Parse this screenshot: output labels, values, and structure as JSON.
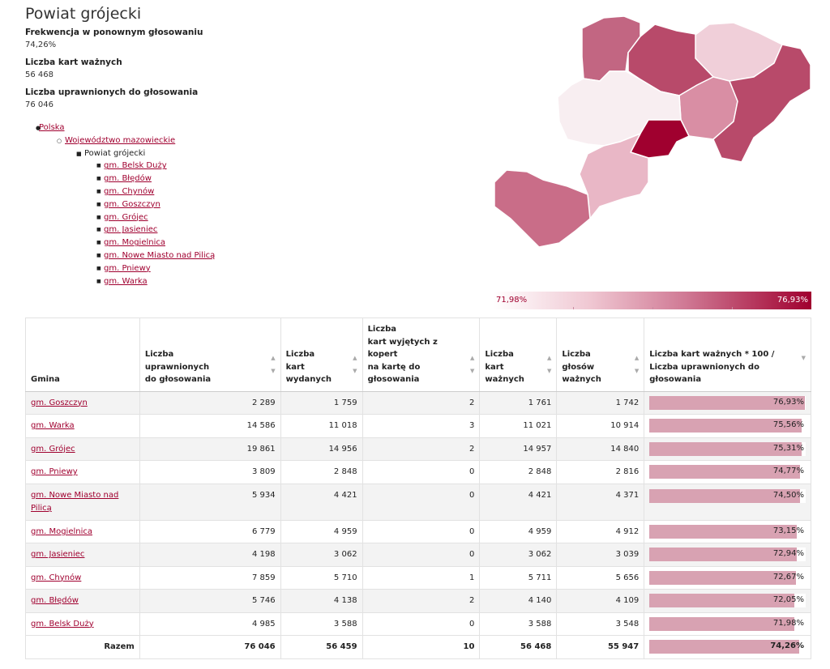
{
  "title": "Powiat grójecki",
  "stats": [
    {
      "label": "Frekwencja w ponownym głosowaniu",
      "value": "74,26%"
    },
    {
      "label": "Liczba kart ważnych",
      "value": "56 468"
    },
    {
      "label": "Liczba uprawnionych do głosowania",
      "value": "76 046"
    }
  ],
  "breadcrumb": {
    "country": "Polska",
    "voivodeship": "Województwo mazowieckie",
    "current": "Powiat grójecki",
    "gminy": [
      "gm. Belsk Duży",
      "gm. Błędów",
      "gm. Chynów",
      "gm. Goszczyn",
      "gm. Grójec",
      "gm. Jasieniec",
      "gm. Mogielnica",
      "gm. Nowe Miasto nad Pilicą",
      "gm. Pniewy",
      "gm. Warka"
    ]
  },
  "legend": {
    "min": "71,98%",
    "max": "76,93%",
    "color_low": "#ffffff",
    "color_high": "#a0002f"
  },
  "map_colors": {
    "warka": "#b84a6a",
    "goszczyn": "#a0002f",
    "grojec": "#c26682",
    "pniewy": "#d98ea4",
    "belsk": "#f8eef1",
    "chynow": "#f0cfd9",
    "jasieniec": "#d88ea4",
    "bledow": "#e9b7c6",
    "nowe_miasto": "#c96d88",
    "mogielnica": "#fce9ee"
  },
  "table": {
    "headers": {
      "gmina": "Gmina",
      "uprawnionych": [
        "Liczba",
        "uprawnionych",
        "do głosowania"
      ],
      "wydanych": [
        "Liczba",
        "kart",
        "wydanych"
      ],
      "wyjetych": [
        "Liczba",
        "kart wyjętych z",
        "kopert",
        "na kartę do",
        "głosowania"
      ],
      "waznych": [
        "Liczba",
        "kart",
        "ważnych"
      ],
      "glosow": [
        "Liczba",
        "głosów",
        "ważnych"
      ],
      "frekwencja": [
        "Liczba kart ważnych * 100 /",
        "Liczba uprawnionych do",
        "głosowania"
      ]
    },
    "rows": [
      {
        "gmina": "gm. Goszczyn",
        "uprawnionych": "2 289",
        "wydanych": "1 759",
        "wyjetych": "2",
        "waznych": "1 761",
        "glosow": "1 742",
        "pct": "76,93%",
        "pct_value": 76.93
      },
      {
        "gmina": "gm. Warka",
        "uprawnionych": "14 586",
        "wydanych": "11 018",
        "wyjetych": "3",
        "waznych": "11 021",
        "glosow": "10 914",
        "pct": "75,56%",
        "pct_value": 75.56
      },
      {
        "gmina": "gm. Grójec",
        "uprawnionych": "19 861",
        "wydanych": "14 956",
        "wyjetych": "2",
        "waznych": "14 957",
        "glosow": "14 840",
        "pct": "75,31%",
        "pct_value": 75.31
      },
      {
        "gmina": "gm. Pniewy",
        "uprawnionych": "3 809",
        "wydanych": "2 848",
        "wyjetych": "0",
        "waznych": "2 848",
        "glosow": "2 816",
        "pct": "74,77%",
        "pct_value": 74.77
      },
      {
        "gmina": "gm. Nowe Miasto nad Pilicą",
        "uprawnionych": "5 934",
        "wydanych": "4 421",
        "wyjetych": "0",
        "waznych": "4 421",
        "glosow": "4 371",
        "pct": "74,50%",
        "pct_value": 74.5
      },
      {
        "gmina": "gm. Mogielnica",
        "uprawnionych": "6 779",
        "wydanych": "4 959",
        "wyjetych": "0",
        "waznych": "4 959",
        "glosow": "4 912",
        "pct": "73,15%",
        "pct_value": 73.15
      },
      {
        "gmina": "gm. Jasieniec",
        "uprawnionych": "4 198",
        "wydanych": "3 062",
        "wyjetych": "0",
        "waznych": "3 062",
        "glosow": "3 039",
        "pct": "72,94%",
        "pct_value": 72.94
      },
      {
        "gmina": "gm. Chynów",
        "uprawnionych": "7 859",
        "wydanych": "5 710",
        "wyjetych": "1",
        "waznych": "5 711",
        "glosow": "5 656",
        "pct": "72,67%",
        "pct_value": 72.67
      },
      {
        "gmina": "gm. Błędów",
        "uprawnionych": "5 746",
        "wydanych": "4 138",
        "wyjetych": "2",
        "waznych": "4 140",
        "glosow": "4 109",
        "pct": "72,05%",
        "pct_value": 72.05
      },
      {
        "gmina": "gm. Belsk Duży",
        "uprawnionych": "4 985",
        "wydanych": "3 588",
        "wyjetych": "0",
        "waznych": "3 588",
        "glosow": "3 548",
        "pct": "71,98%",
        "pct_value": 71.98
      }
    ],
    "total": {
      "label": "Razem",
      "uprawnionych": "76 046",
      "wydanych": "56 459",
      "wyjetych": "10",
      "waznych": "56 468",
      "glosow": "55 947",
      "pct": "74,26%",
      "pct_value": 74.26
    }
  }
}
